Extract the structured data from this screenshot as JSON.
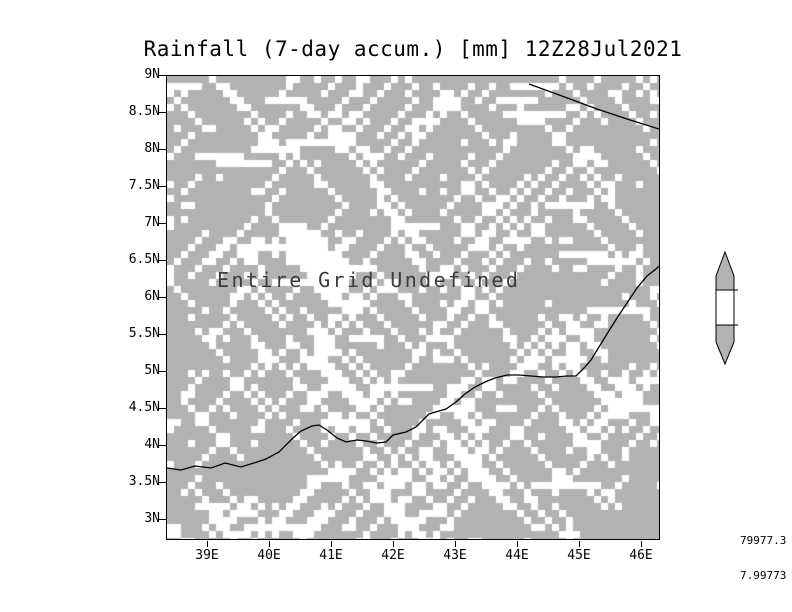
{
  "chart_data": {
    "type": "heatmap",
    "title": "Rainfall (7-day accum.) [mm] 12Z28Jul2021",
    "annotation": "Entire Grid Undefined",
    "data_status": "Entire Grid Undefined",
    "x_ticks": [
      "39E",
      "40E",
      "41E",
      "42E",
      "43E",
      "44E",
      "45E",
      "46E"
    ],
    "y_ticks": [
      "9N",
      "8.5N",
      "8N",
      "7.5N",
      "7N",
      "6.5N",
      "6N",
      "5.5N",
      "5N",
      "4.5N",
      "4N",
      "3.5N",
      "3N"
    ],
    "x_axis_range": [
      38.3,
      46.3
    ],
    "y_axis_range": [
      2.7,
      9.0
    ],
    "values": null,
    "colorbar": {
      "labels": [
        "79977.3",
        "7.99773"
      ]
    },
    "colors": {
      "grid_fill": "#b2b2b2",
      "undefined_speckle": "#ffffff",
      "line": "#000000",
      "frame": "#000000"
    },
    "legend_position": "right",
    "grid": "off"
  }
}
